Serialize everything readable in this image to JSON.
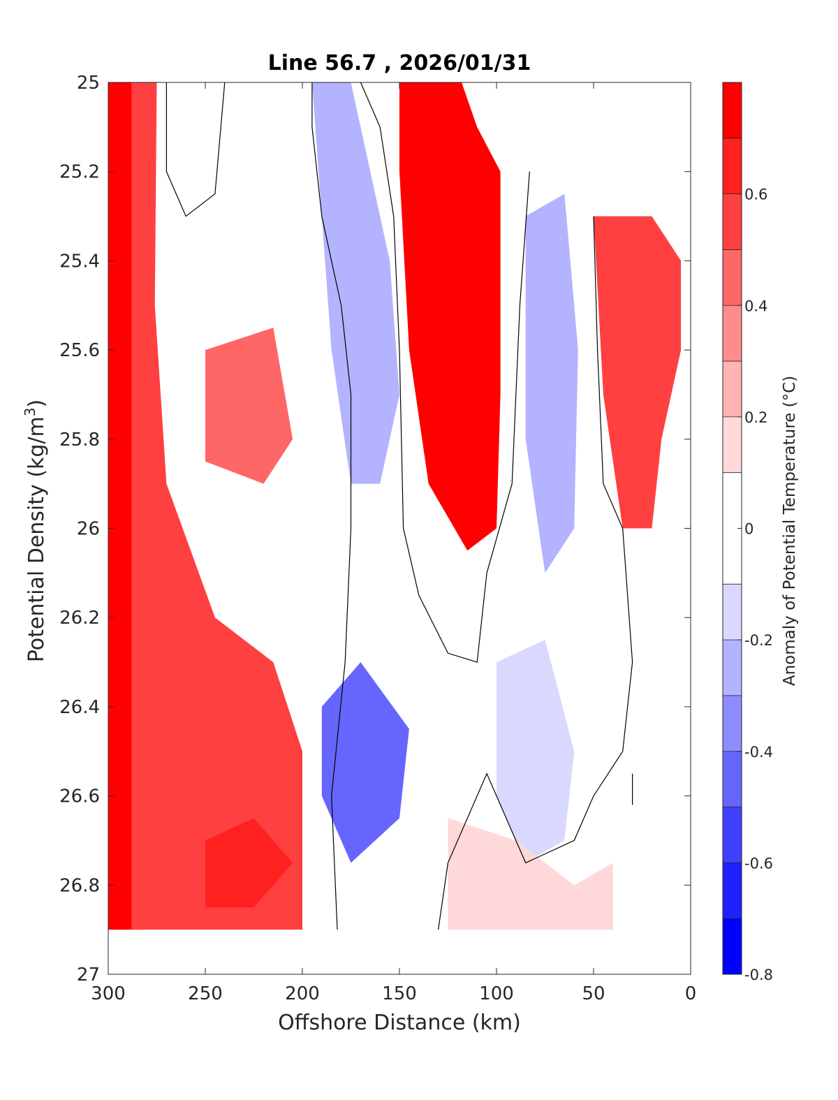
{
  "chart_data": {
    "type": "contourf",
    "title": "Line 56.7 , 2026/01/31",
    "xlabel": "Offshore Distance (km)",
    "ylabel_main": "Potential Density (kg/m",
    "ylabel_sup": "3",
    "ylabel_close": ")",
    "colorbar_label": "Anomaly of Potential Temperature (°C)",
    "xlim": [
      300,
      0
    ],
    "x_reversed": true,
    "ylim": [
      25,
      27
    ],
    "y_reversed": true,
    "x_ticks": [
      300,
      250,
      200,
      150,
      100,
      50,
      0
    ],
    "x_tick_labels": [
      "300",
      "250",
      "200",
      "150",
      "100",
      "50",
      "0"
    ],
    "y_ticks": [
      25,
      25.2,
      25.4,
      25.6,
      25.8,
      26,
      26.2,
      26.4,
      26.6,
      26.8,
      27
    ],
    "y_tick_labels": [
      "25",
      "25.2",
      "25.4",
      "25.6",
      "25.8",
      "26",
      "26.2",
      "26.4",
      "26.6",
      "26.8",
      "27"
    ],
    "colorbar": {
      "levels": [
        -0.8,
        -0.7,
        -0.6,
        -0.5,
        -0.4,
        -0.3,
        -0.2,
        -0.1,
        0.1,
        0.2,
        0.3,
        0.4,
        0.5,
        0.6,
        0.7,
        0.8
      ],
      "colors": [
        "#0000ff",
        "#2020ff",
        "#4040ff",
        "#6666ff",
        "#8c8cff",
        "#b3b3ff",
        "#d9d9ff",
        "#ffffff",
        "#ffd9d9",
        "#ffb3b3",
        "#ff8c8c",
        "#ff6666",
        "#ff4040",
        "#ff2020",
        "#ff0000"
      ],
      "tick_values": [
        -0.8,
        -0.6,
        -0.4,
        -0.2,
        0,
        0.2,
        0.4,
        0.6
      ],
      "tick_labels": [
        "-0.8",
        "-0.6",
        "-0.4",
        "-0.2",
        "0",
        "0.2",
        "0.4",
        "0.6"
      ]
    },
    "fields": [
      {
        "name": "warm-nearshore-band",
        "value": 0.75,
        "poly": [
          [
            300,
            25
          ],
          [
            288,
            25
          ],
          [
            285,
            25.5
          ],
          [
            287,
            26
          ],
          [
            285,
            26.5
          ],
          [
            282,
            26.9
          ],
          [
            300,
            26.9
          ]
        ]
      },
      {
        "name": "warm-offshore-core",
        "value": 0.55,
        "poly": [
          [
            288,
            25
          ],
          [
            275,
            25
          ],
          [
            276,
            25.5
          ],
          [
            270,
            25.9
          ],
          [
            245,
            26.2
          ],
          [
            215,
            26.3
          ],
          [
            200,
            26.5
          ],
          [
            200,
            26.9
          ],
          [
            288,
            26.9
          ]
        ]
      },
      {
        "name": "warm-mid-core",
        "value": 0.45,
        "poly": [
          [
            250,
            25.6
          ],
          [
            215,
            25.55
          ],
          [
            205,
            25.8
          ],
          [
            220,
            25.9
          ],
          [
            250,
            25.85
          ]
        ]
      },
      {
        "name": "warm-deep-core",
        "value": 0.65,
        "poly": [
          [
            250,
            26.7
          ],
          [
            225,
            26.65
          ],
          [
            205,
            26.75
          ],
          [
            225,
            26.85
          ],
          [
            250,
            26.85
          ]
        ]
      },
      {
        "name": "cool-lens-200-150",
        "value": -0.3,
        "poly": [
          [
            195,
            25
          ],
          [
            175,
            25
          ],
          [
            155,
            25.4
          ],
          [
            150,
            25.7
          ],
          [
            160,
            25.9
          ],
          [
            175,
            25.9
          ],
          [
            185,
            25.6
          ],
          [
            190,
            25.3
          ]
        ]
      },
      {
        "name": "cool-lens-deep",
        "value": -0.45,
        "poly": [
          [
            190,
            26.4
          ],
          [
            170,
            26.3
          ],
          [
            145,
            26.45
          ],
          [
            150,
            26.65
          ],
          [
            175,
            26.75
          ],
          [
            190,
            26.6
          ]
        ]
      },
      {
        "name": "warm-core-130-90",
        "value": 0.7,
        "poly": [
          [
            150,
            25
          ],
          [
            118,
            25
          ],
          [
            110,
            25.1
          ],
          [
            98,
            25.2
          ],
          [
            98,
            25.7
          ],
          [
            100,
            26.0
          ],
          [
            115,
            26.05
          ],
          [
            135,
            25.9
          ],
          [
            145,
            25.6
          ],
          [
            150,
            25.2
          ]
        ]
      },
      {
        "name": "cool-lens-75",
        "value": -0.3,
        "poly": [
          [
            85,
            25.3
          ],
          [
            65,
            25.25
          ],
          [
            58,
            25.6
          ],
          [
            60,
            26
          ],
          [
            75,
            26.1
          ],
          [
            85,
            25.8
          ]
        ]
      },
      {
        "name": "warm-nearshore-top",
        "value": 0.5,
        "poly": [
          [
            50,
            25.3
          ],
          [
            20,
            25.3
          ],
          [
            5,
            25.4
          ],
          [
            5,
            25.6
          ],
          [
            15,
            25.8
          ],
          [
            20,
            26.0
          ],
          [
            35,
            26.0
          ],
          [
            45,
            25.7
          ]
        ]
      },
      {
        "name": "cool-lens-90-60",
        "value": -0.2,
        "poly": [
          [
            100,
            26.3
          ],
          [
            75,
            26.25
          ],
          [
            60,
            26.5
          ],
          [
            65,
            26.7
          ],
          [
            85,
            26.75
          ],
          [
            100,
            26.6
          ]
        ]
      },
      {
        "name": "warm-deep-115",
        "value": 0.15,
        "poly": [
          [
            125,
            26.65
          ],
          [
            90,
            26.7
          ],
          [
            60,
            26.8
          ],
          [
            40,
            26.75
          ],
          [
            40,
            26.9
          ],
          [
            125,
            26.9
          ]
        ]
      }
    ],
    "zero_contours": [
      [
        [
          270,
          25
        ],
        [
          270,
          25.2
        ],
        [
          260,
          25.3
        ],
        [
          245,
          25.25
        ],
        [
          240,
          25
        ]
      ],
      [
        [
          195,
          25
        ],
        [
          195,
          25.1
        ],
        [
          190,
          25.3
        ],
        [
          180,
          25.5
        ],
        [
          175,
          25.7
        ],
        [
          175,
          26.0
        ],
        [
          178,
          26.3
        ],
        [
          185,
          26.6
        ],
        [
          182,
          26.9
        ]
      ],
      [
        [
          170,
          25
        ],
        [
          160,
          25.1
        ],
        [
          153,
          25.3
        ],
        [
          150,
          25.6
        ],
        [
          148,
          26.0
        ],
        [
          140,
          26.15
        ],
        [
          125,
          26.28
        ],
        [
          110,
          26.3
        ],
        [
          105,
          26.1
        ],
        [
          92,
          25.9
        ],
        [
          88,
          25.5
        ],
        [
          83,
          25.2
        ]
      ],
      [
        [
          50,
          25.3
        ],
        [
          48,
          25.6
        ],
        [
          45,
          25.9
        ],
        [
          35,
          26.0
        ],
        [
          30,
          26.3
        ],
        [
          35,
          26.5
        ],
        [
          50,
          26.6
        ],
        [
          60,
          26.7
        ],
        [
          85,
          26.75
        ],
        [
          100,
          26.6
        ],
        [
          105,
          26.55
        ],
        [
          110,
          26.6
        ],
        [
          125,
          26.75
        ],
        [
          130,
          26.9
        ]
      ],
      [
        [
          30,
          26.55
        ],
        [
          30,
          26.62
        ]
      ]
    ]
  }
}
